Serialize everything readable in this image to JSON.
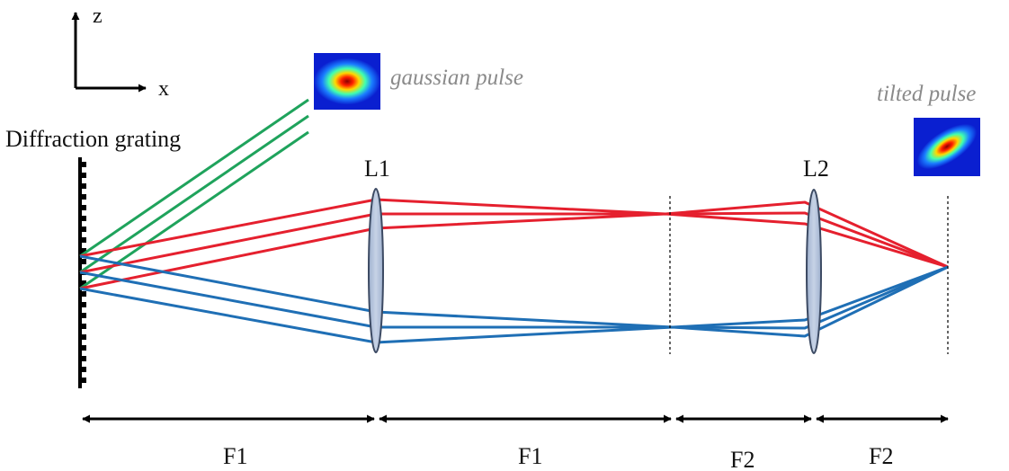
{
  "axes": {
    "z_label": "z",
    "x_label": "x"
  },
  "grating": {
    "label": "Diffraction grating"
  },
  "lenses": [
    {
      "label": "L1"
    },
    {
      "label": "L2"
    }
  ],
  "pulses": {
    "input_label": "gaussian pulse",
    "output_label": "tilted pulse"
  },
  "distances": [
    {
      "label": "F1"
    },
    {
      "label": "F1"
    },
    {
      "label": "F2"
    },
    {
      "label": "F2"
    }
  ],
  "colors": {
    "incident_beam": "#1fa35c",
    "red_beam": "#e5202e",
    "blue_beam": "#1f6fb5",
    "lens_fill": "#b3c3dc",
    "lens_stroke": "#3c4a63",
    "pulse_label": "#8a8a8a"
  }
}
